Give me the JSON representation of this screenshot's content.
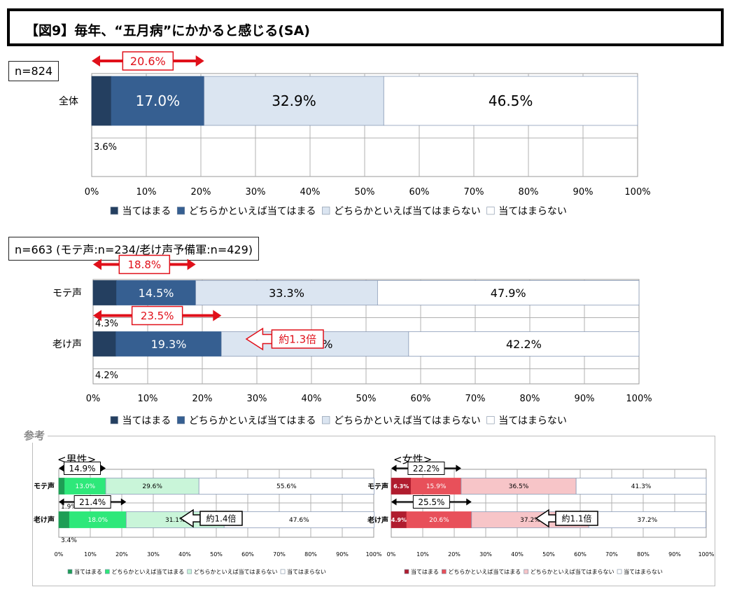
{
  "title": "【図9】毎年、“五月病”にかかると感じる(SA)",
  "legend_labels": [
    "当てはまる",
    "どちらかといえば当てはまる",
    "どちらかといえば当てはまらない",
    "当てはまらない"
  ],
  "ticks": [
    "0%",
    "10%",
    "20%",
    "30%",
    "40%",
    "50%",
    "60%",
    "70%",
    "80%",
    "90%",
    "100%"
  ],
  "reference_label": "参考",
  "colors": {
    "blue": [
      "#243f60",
      "#365f91",
      "#dbe5f1",
      "#ffffff"
    ],
    "green": [
      "#1e9e55",
      "#2ee87a",
      "#c9f5d9",
      "#ffffff"
    ],
    "red": [
      "#b01c2e",
      "#e8505a",
      "#f7c5c8",
      "#ffffff"
    ],
    "highlight": "#e0101a"
  },
  "chart_data": [
    {
      "type": "bar",
      "stacked": true,
      "orientation": "horizontal",
      "n_label": "n=824",
      "xlim": [
        0,
        100
      ],
      "categories": [
        "全体"
      ],
      "series": [
        {
          "name": "当てはまる",
          "values": [
            3.6
          ]
        },
        {
          "name": "どちらかといえば当てはまる",
          "values": [
            17.0
          ]
        },
        {
          "name": "どちらかといえば当てはまらない",
          "values": [
            32.9
          ]
        },
        {
          "name": "当てはまらない",
          "values": [
            46.5
          ]
        }
      ],
      "annotations": {
        "combined": [
          "20.6%"
        ]
      }
    },
    {
      "type": "bar",
      "stacked": true,
      "orientation": "horizontal",
      "n_label": "n=663 (モテ声:n=234/老け声予備軍:n=429)",
      "xlim": [
        0,
        100
      ],
      "categories": [
        "モテ声",
        "老け声"
      ],
      "series": [
        {
          "name": "当てはまる",
          "values": [
            4.3,
            4.2
          ]
        },
        {
          "name": "どちらかといえば当てはまる",
          "values": [
            14.5,
            19.3
          ]
        },
        {
          "name": "どちらかといえば当てはまらない",
          "values": [
            33.3,
            34.3
          ]
        },
        {
          "name": "当てはまらない",
          "values": [
            47.9,
            42.2
          ]
        }
      ],
      "annotations": {
        "combined": [
          "18.8%",
          "23.5%"
        ],
        "ratio": "約1.3倍"
      }
    },
    {
      "type": "bar",
      "stacked": true,
      "orientation": "horizontal",
      "subtitle": "<男性>",
      "xlim": [
        0,
        100
      ],
      "categories": [
        "モテ声",
        "老け声"
      ],
      "series": [
        {
          "name": "当てはまる",
          "values": [
            1.9,
            3.4
          ]
        },
        {
          "name": "どちらかといえば当てはまる",
          "values": [
            13.0,
            18.0
          ]
        },
        {
          "name": "どちらかといえば当てはまらない",
          "values": [
            29.6,
            31.1
          ]
        },
        {
          "name": "当てはまらない",
          "values": [
            55.6,
            47.6
          ]
        }
      ],
      "annotations": {
        "combined": [
          "14.9%",
          "21.4%"
        ],
        "ratio": "約1.4倍"
      }
    },
    {
      "type": "bar",
      "stacked": true,
      "orientation": "horizontal",
      "subtitle": "<女性>",
      "xlim": [
        0,
        100
      ],
      "categories": [
        "モテ声",
        "老け声"
      ],
      "series": [
        {
          "name": "当てはまる",
          "values": [
            6.3,
            4.9
          ]
        },
        {
          "name": "どちらかといえば当てはまる",
          "values": [
            15.9,
            20.6
          ]
        },
        {
          "name": "どちらかといえば当てはまらない",
          "values": [
            36.5,
            37.2
          ]
        },
        {
          "name": "当てはまらない",
          "values": [
            41.3,
            37.2
          ]
        }
      ],
      "annotations": {
        "combined": [
          "22.2%",
          "25.5%"
        ],
        "ratio": "約1.1倍"
      }
    }
  ]
}
